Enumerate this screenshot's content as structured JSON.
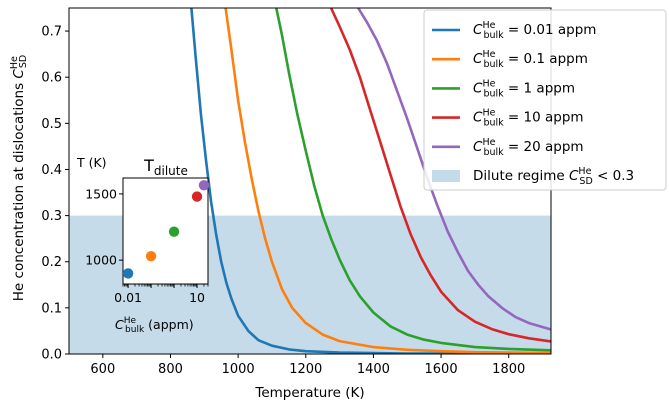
{
  "colors": {
    "c001": "#1f77b4",
    "c01": "#ff7f0e",
    "c1": "#2ca02c",
    "c10": "#d62728",
    "c20": "#9467bd",
    "dilute": "#c6dbe9"
  },
  "chart_data": [
    {
      "type": "line",
      "xlabel": "Temperature (K)",
      "ylabel": "He concentration at dislocations",
      "ylabel_symbol": "C",
      "ylabel_sup": "He",
      "ylabel_sub": "SD",
      "xlim": [
        500,
        1925
      ],
      "ylim": [
        0.0,
        0.75
      ],
      "xticks": [
        "600",
        "800",
        "1000",
        "1200",
        "1400",
        "1600",
        "1800"
      ],
      "xtick_values": [
        600,
        800,
        1000,
        1200,
        1400,
        1600,
        1800
      ],
      "yticks": [
        "0.0",
        "0.1",
        "0.2",
        "0.3",
        "0.4",
        "0.5",
        "0.6",
        "0.7"
      ],
      "ytick_values": [
        0.0,
        0.1,
        0.2,
        0.3,
        0.4,
        0.5,
        0.6,
        0.7
      ],
      "grid": false,
      "legend_position": "top-right",
      "shaded_region": {
        "y_from": 0.0,
        "y_to": 0.3,
        "label_text": "Dilute regime",
        "label_sym": "C",
        "label_sup": "He",
        "label_sub": "SD",
        "label_rest": "< 0.3"
      },
      "series": [
        {
          "key": "c001",
          "sym": "C",
          "sup": "He",
          "sub": "bulk",
          "rest": "= 0.01 appm",
          "x": [
            862,
            875,
            890,
            905,
            920,
            935,
            950,
            965,
            980,
            1000,
            1030,
            1060,
            1100,
            1150,
            1200,
            1300,
            1400,
            1500,
            1600,
            1800,
            1925
          ],
          "y": [
            0.75,
            0.64,
            0.52,
            0.42,
            0.33,
            0.26,
            0.2,
            0.155,
            0.12,
            0.083,
            0.05,
            0.03,
            0.018,
            0.01,
            0.006,
            0.003,
            0.002,
            0.001,
            0.001,
            0.0005,
            0.0003
          ]
        },
        {
          "key": "c01",
          "sym": "C",
          "sup": "He",
          "sub": "bulk",
          "rest": "= 0.1 appm",
          "x": [
            963,
            980,
            1000,
            1020,
            1040,
            1060,
            1080,
            1100,
            1130,
            1160,
            1200,
            1250,
            1300,
            1400,
            1500,
            1600,
            1700,
            1800,
            1925
          ],
          "y": [
            0.75,
            0.66,
            0.55,
            0.46,
            0.38,
            0.31,
            0.25,
            0.2,
            0.14,
            0.1,
            0.067,
            0.042,
            0.028,
            0.015,
            0.009,
            0.006,
            0.004,
            0.003,
            0.002
          ]
        },
        {
          "key": "c1",
          "sym": "C",
          "sup": "He",
          "sub": "bulk",
          "rest": "= 1 appm",
          "x": [
            1113,
            1130,
            1150,
            1175,
            1200,
            1225,
            1250,
            1275,
            1300,
            1330,
            1360,
            1400,
            1450,
            1500,
            1550,
            1600,
            1700,
            1800,
            1925
          ],
          "y": [
            0.75,
            0.69,
            0.61,
            0.52,
            0.44,
            0.365,
            0.3,
            0.25,
            0.205,
            0.16,
            0.125,
            0.09,
            0.06,
            0.042,
            0.031,
            0.024,
            0.015,
            0.011,
            0.008
          ]
        },
        {
          "key": "c10",
          "sym": "C",
          "sup": "He",
          "sub": "bulk",
          "rest": "= 10 appm",
          "x": [
            1275,
            1300,
            1330,
            1360,
            1390,
            1420,
            1450,
            1480,
            1510,
            1540,
            1570,
            1600,
            1650,
            1700,
            1750,
            1800,
            1860,
            1925
          ],
          "y": [
            0.75,
            0.71,
            0.66,
            0.6,
            0.53,
            0.46,
            0.39,
            0.32,
            0.26,
            0.21,
            0.17,
            0.135,
            0.095,
            0.07,
            0.054,
            0.043,
            0.034,
            0.027
          ]
        },
        {
          "key": "c20",
          "sym": "C",
          "sup": "He",
          "sub": "bulk",
          "rest": "= 20 appm",
          "x": [
            1355,
            1380,
            1410,
            1440,
            1470,
            1500,
            1530,
            1560,
            1590,
            1620,
            1650,
            1680,
            1710,
            1740,
            1780,
            1820,
            1860,
            1925
          ],
          "y": [
            0.75,
            0.72,
            0.68,
            0.63,
            0.57,
            0.51,
            0.445,
            0.38,
            0.32,
            0.265,
            0.22,
            0.18,
            0.15,
            0.125,
            0.1,
            0.08,
            0.067,
            0.053
          ]
        }
      ]
    },
    {
      "type": "scatter",
      "title": "T",
      "title_sub": "dilute",
      "ylabel": "T (K)",
      "xlabel_sym": "C",
      "xlabel_sup": "He",
      "xlabel_sub": "bulk",
      "xlabel_rest": "(appm)",
      "xscale": "log",
      "xlim": [
        0.006,
        30
      ],
      "ylim": [
        820,
        1620
      ],
      "xticks": [
        "0.01",
        "10"
      ],
      "xtick_values": [
        0.01,
        10
      ],
      "yticks": [
        "1000",
        "1500"
      ],
      "ytick_values": [
        1000,
        1500
      ],
      "points": [
        {
          "key": "c001",
          "x": 0.01,
          "y": 900
        },
        {
          "key": "c01",
          "x": 0.1,
          "y": 1030
        },
        {
          "key": "c1",
          "x": 1,
          "y": 1215
        },
        {
          "key": "c10",
          "x": 10,
          "y": 1480
        },
        {
          "key": "c20",
          "x": 20,
          "y": 1565
        }
      ]
    }
  ]
}
